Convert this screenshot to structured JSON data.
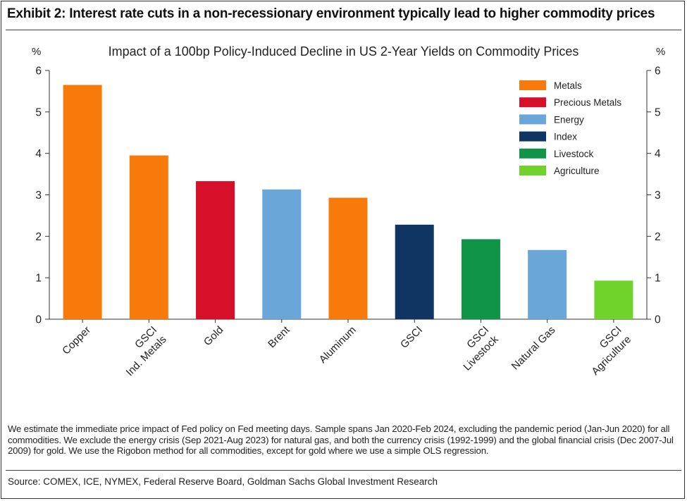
{
  "exhibit_title": "Exhibit 2: Interest rate cuts in a non-recessionary environment typically lead to higher commodity prices",
  "footnote": "We estimate the immediate price impact of Fed policy on Fed meeting days. Sample spans Jan 2020-Feb 2024, excluding the pandemic period (Jan-Jun 2020) for all commodities. We exclude the energy crisis (Sep 2021-Aug 2023) for natural gas, and both the currency crisis (1992-1999) and the global financial crisis (Dec 2007-Jul 2009) for gold. We use the Rigobon method for all commodities, except for gold where we use a simple OLS regression.",
  "source": "Source: COMEX, ICE, NYMEX, Federal Reserve Board, Goldman Sachs Global Investment Research",
  "chart_data": {
    "type": "bar",
    "title": "Impact of a 100bp Policy-Induced Decline in US 2-Year Yields on Commodity Prices",
    "ylabel_left": "%",
    "ylabel_right": "%",
    "xlabel": "",
    "ylim": [
      0,
      6
    ],
    "yticks": [
      0,
      1,
      2,
      3,
      4,
      5,
      6
    ],
    "grid": false,
    "legend_position": "top-right",
    "categories": [
      [
        "Copper"
      ],
      [
        "GSCI",
        "Ind. Metals"
      ],
      [
        "Gold"
      ],
      [
        "Brent"
      ],
      [
        "Aluminum"
      ],
      [
        "GSCI"
      ],
      [
        "GSCI",
        "Livestock"
      ],
      [
        "Natural Gas"
      ],
      [
        "GSCI",
        "Agriculture"
      ]
    ],
    "values": [
      5.65,
      3.95,
      3.33,
      3.13,
      2.93,
      2.28,
      1.93,
      1.67,
      0.93
    ],
    "bar_groups": [
      "Metals",
      "Metals",
      "Precious Metals",
      "Energy",
      "Metals",
      "Index",
      "Livestock",
      "Energy",
      "Agriculture"
    ],
    "legend": [
      {
        "name": "Metals",
        "color": "#f77a0a"
      },
      {
        "name": "Precious Metals",
        "color": "#d7102a"
      },
      {
        "name": "Energy",
        "color": "#6aa6d8"
      },
      {
        "name": "Index",
        "color": "#0f3562"
      },
      {
        "name": "Livestock",
        "color": "#109448"
      },
      {
        "name": "Agriculture",
        "color": "#6fd32c"
      }
    ]
  }
}
